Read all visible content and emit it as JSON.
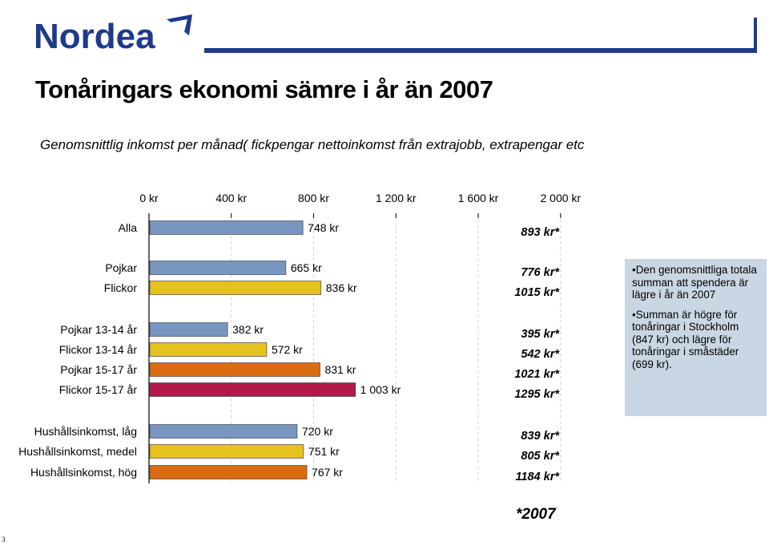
{
  "header": {
    "logo_text": "Nordea"
  },
  "title": "Tonåringars ekonomi sämre i år än 2007",
  "subtitle": "Genomsnittlig inkomst per månad( fickpengar nettoinkomst från extrajobb, extrapengar etc",
  "chart_data": {
    "type": "bar",
    "orientation": "horizontal",
    "xlim": [
      0,
      2000
    ],
    "x_ticks": [
      "0 kr",
      "400 kr",
      "800 kr",
      "1 200 kr",
      "1 600 kr",
      "2 000 kr"
    ],
    "x_tick_values": [
      0,
      400,
      800,
      1200,
      1600,
      2000
    ],
    "gridlines": "vertical dashed",
    "groups": [
      {
        "bars": [
          {
            "label": "Alla",
            "value": 748,
            "value_label": "748 kr",
            "comparison_label": "893 kr*",
            "color": "#7896c0"
          }
        ]
      },
      {
        "bars": [
          {
            "label": "Pojkar",
            "value": 665,
            "value_label": "665 kr",
            "comparison_label": "776 kr*",
            "color": "#7896c0"
          },
          {
            "label": "Flickor",
            "value": 836,
            "value_label": "836 kr",
            "comparison_label": "1015 kr*",
            "color": "#e6c21e"
          }
        ]
      },
      {
        "bars": [
          {
            "label": "Pojkar 13-14 år",
            "value": 382,
            "value_label": "382 kr",
            "comparison_label": "395 kr*",
            "color": "#7896c0"
          },
          {
            "label": "Flickor 13-14 år",
            "value": 572,
            "value_label": "572 kr",
            "comparison_label": "542 kr*",
            "color": "#e6c21e"
          },
          {
            "label": "Pojkar 15-17 år",
            "value": 831,
            "value_label": "831 kr",
            "comparison_label": "1021 kr*",
            "color": "#d96b10"
          },
          {
            "label": "Flickor 15-17 år",
            "value": 1003,
            "value_label": "1 003 kr",
            "comparison_label": "1295 kr*",
            "color": "#b31a4a"
          }
        ]
      },
      {
        "bars": [
          {
            "label": "Hushållsinkomst, låg",
            "value": 720,
            "value_label": "720 kr",
            "comparison_label": "839 kr*",
            "color": "#7896c0"
          },
          {
            "label": "Hushållsinkomst, medel",
            "value": 751,
            "value_label": "751 kr",
            "comparison_label": "805 kr*",
            "color": "#e6c21e"
          },
          {
            "label": "Hushållsinkomst, hög",
            "value": 767,
            "value_label": "767 kr",
            "comparison_label": "1184 kr*",
            "color": "#d96b10"
          }
        ]
      }
    ]
  },
  "notes": [
    "Den genomsnittliga totala summan att spendera är lägre i år än 2007",
    "Summan  är högre för tonåringar i Stockholm (847 kr) och lägre för tonåringar i småstäder (699 kr)."
  ],
  "footnote": "*2007",
  "page_number": "3"
}
